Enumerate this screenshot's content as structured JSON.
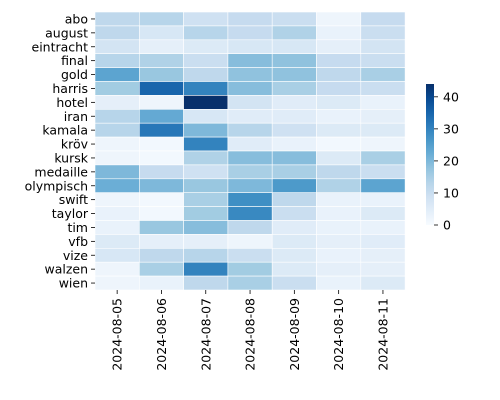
{
  "chart_data": {
    "type": "heatmap",
    "title": "",
    "xlabel": "",
    "ylabel": "",
    "x": [
      "2024-08-05",
      "2024-08-06",
      "2024-08-07",
      "2024-08-08",
      "2024-08-09",
      "2024-08-10",
      "2024-08-11"
    ],
    "y": [
      "abo",
      "august",
      "eintracht",
      "final",
      "gold",
      "harris",
      "hotel",
      "iran",
      "kamala",
      "kröv",
      "kursk",
      "medaille",
      "olympisch",
      "swift",
      "taylor",
      "tim",
      "vfb",
      "vize",
      "walzen",
      "wien"
    ],
    "values": [
      [
        12,
        13,
        9,
        11,
        10,
        2,
        11
      ],
      [
        12,
        7,
        13,
        11,
        14,
        3,
        10
      ],
      [
        8,
        4,
        6,
        7,
        7,
        4,
        8
      ],
      [
        13,
        14,
        10,
        19,
        18,
        11,
        10
      ],
      [
        24,
        17,
        12,
        18,
        18,
        12,
        15
      ],
      [
        16,
        35,
        30,
        19,
        15,
        11,
        10
      ],
      [
        4,
        2,
        44,
        8,
        5,
        6,
        3
      ],
      [
        13,
        23,
        7,
        5,
        5,
        3,
        4
      ],
      [
        13,
        32,
        20,
        13,
        9,
        6,
        6
      ],
      [
        2,
        1,
        30,
        5,
        3,
        1,
        2
      ],
      [
        2,
        1,
        14,
        19,
        19,
        6,
        15
      ],
      [
        20,
        11,
        9,
        15,
        15,
        12,
        10
      ],
      [
        22,
        20,
        17,
        20,
        26,
        14,
        24
      ],
      [
        2,
        1,
        15,
        28,
        12,
        3,
        3
      ],
      [
        3,
        1,
        16,
        29,
        10,
        3,
        6
      ],
      [
        3,
        17,
        19,
        12,
        5,
        3,
        3
      ],
      [
        6,
        4,
        4,
        2,
        6,
        4,
        5
      ],
      [
        7,
        12,
        13,
        10,
        6,
        3,
        4
      ],
      [
        2,
        15,
        30,
        16,
        6,
        4,
        4
      ],
      [
        2,
        3,
        12,
        15,
        10,
        3,
        6
      ]
    ],
    "colorbar": {
      "range": [
        0,
        44
      ],
      "ticks": [
        0,
        10,
        20,
        30,
        40
      ]
    },
    "colormap": "Blues",
    "grid": false
  },
  "colors": {
    "low": "#f7fbff",
    "high": "#08306b",
    "cell_border": "#ffffff"
  }
}
